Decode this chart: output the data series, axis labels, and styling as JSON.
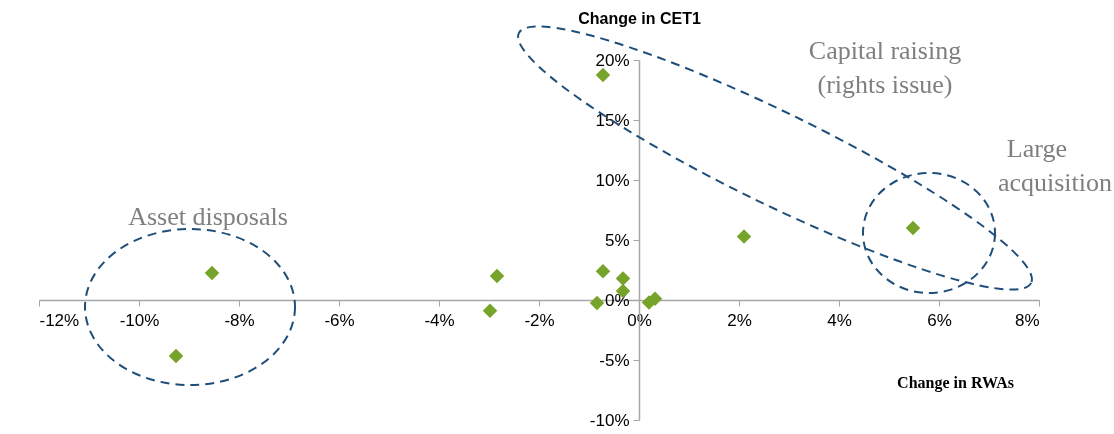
{
  "chart_data": {
    "type": "scatter",
    "xlabel": "Change in RWAs",
    "ylabel": "Change in CET1",
    "x": [
      -0.72,
      -8.54,
      -9.26,
      -2.84,
      -2.98,
      -0.72,
      -0.32,
      -0.32,
      -0.84,
      0.2,
      0.32,
      2.1,
      5.48
    ],
    "series": [
      {
        "color": "#76a32a",
        "values": [
          18.75,
          2.25,
          -4.67,
          2.0,
          -0.9,
          2.4,
          1.8,
          0.75,
          -0.25,
          -0.2,
          0.1,
          5.3,
          6.0
        ]
      }
    ],
    "marker": "diamond",
    "xlim": [
      -12,
      8
    ],
    "ylim": [
      -10,
      20
    ],
    "xticks": [
      {
        "value": -12,
        "label": "-12%"
      },
      {
        "value": -10,
        "label": "-10%"
      },
      {
        "value": -8,
        "label": "-8%"
      },
      {
        "value": -6,
        "label": "-6%"
      },
      {
        "value": -4,
        "label": "-4%"
      },
      {
        "value": -2,
        "label": "-2%"
      },
      {
        "value": 0,
        "label": "0%"
      },
      {
        "value": 2,
        "label": "2%"
      },
      {
        "value": 4,
        "label": "4%"
      },
      {
        "value": 6,
        "label": "6%"
      },
      {
        "value": 8,
        "label": "8%"
      }
    ],
    "yticks": [
      {
        "value": -10,
        "label": "-10%"
      },
      {
        "value": -5,
        "label": "-5%"
      },
      {
        "value": 0,
        "label": "0%"
      },
      {
        "value": 5,
        "label": "5%"
      },
      {
        "value": 10,
        "label": "10%"
      },
      {
        "value": 15,
        "label": "15%"
      },
      {
        "value": 20,
        "label": "20%"
      }
    ],
    "annotations": [
      "Asset disposals",
      "Capital raising\n(rights issue)",
      "Large\nacquisition"
    ]
  }
}
